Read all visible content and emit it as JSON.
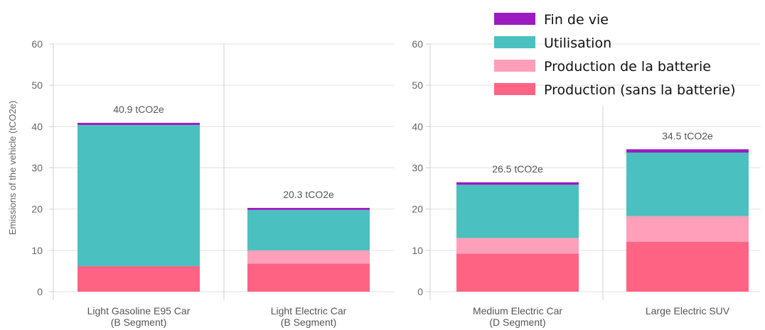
{
  "chart_data": [
    {
      "type": "bar",
      "stacked": true,
      "ylabel": "Emissions of the vehicle (tCO2e)",
      "ylim": [
        0,
        60
      ],
      "yticks": [
        0,
        10,
        20,
        30,
        40,
        50,
        60
      ],
      "grid": true,
      "categories": [
        [
          "Light Gasoline E95 Car",
          "(B Segment)"
        ],
        [
          "Light Electric Car",
          "(B Segment)"
        ]
      ],
      "totals_labels": [
        "40.9 tCO2e",
        "20.3 tCO2e"
      ],
      "series": [
        {
          "name": "Production (sans la batterie)",
          "color": "#ff6384",
          "values": [
            6.2,
            6.8
          ]
        },
        {
          "name": "Production de la batterie",
          "color": "#ff9fba",
          "values": [
            0,
            3.2
          ]
        },
        {
          "name": "Utilisation",
          "color": "#4bc0c0",
          "values": [
            34.2,
            9.8
          ]
        },
        {
          "name": "Fin de vie",
          "color": "#9b1bc0",
          "values": [
            0.5,
            0.5
          ]
        }
      ]
    },
    {
      "type": "bar",
      "stacked": true,
      "ylabel": "",
      "ylim": [
        0,
        60
      ],
      "yticks": [
        0,
        10,
        20,
        30,
        40,
        50,
        60
      ],
      "grid": true,
      "categories": [
        [
          "Medium Electric Car",
          "(D Segment)"
        ],
        [
          "Large Electric SUV",
          ""
        ]
      ],
      "totals_labels": [
        "26.5 tCO2e",
        "34.5 tCO2e"
      ],
      "series": [
        {
          "name": "Production (sans la batterie)",
          "color": "#ff6384",
          "values": [
            9.2,
            12.1
          ]
        },
        {
          "name": "Production de la batterie",
          "color": "#ff9fba",
          "values": [
            3.8,
            6.2
          ]
        },
        {
          "name": "Utilisation",
          "color": "#4bc0c0",
          "values": [
            12.9,
            15.4
          ]
        },
        {
          "name": "Fin de vie",
          "color": "#9b1bc0",
          "values": [
            0.6,
            0.8
          ]
        }
      ]
    }
  ],
  "legend": {
    "placement": "top-right",
    "items": [
      {
        "label": "Fin de vie",
        "color": "#9b1bc0"
      },
      {
        "label": "Utilisation",
        "color": "#4bc0c0"
      },
      {
        "label": "Production de la batterie",
        "color": "#ff9fba"
      },
      {
        "label": "Production (sans la batterie)",
        "color": "#ff6384"
      }
    ]
  }
}
